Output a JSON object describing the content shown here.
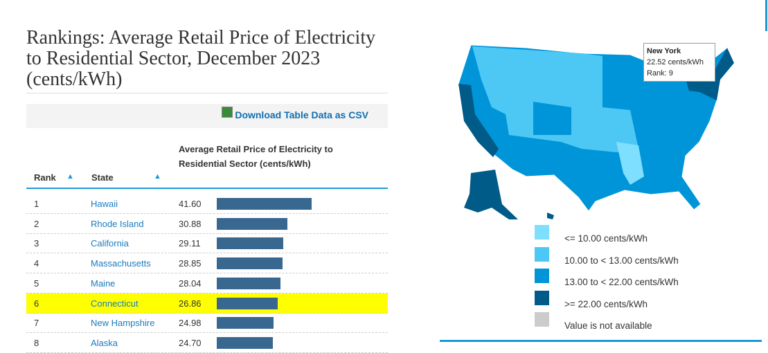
{
  "title": "Rankings: Average Retail Price of Electricity to Residential Sector, December 2023 (cents/kWh)",
  "download_label": "Download Table Data as CSV",
  "table": {
    "headers": {
      "rank": "Rank",
      "state": "State",
      "value": "Average Retail Price of Electricity to Residential Sector (cents/kWh)"
    },
    "rows": [
      {
        "rank": "1",
        "state": "Hawaii",
        "value": 41.6
      },
      {
        "rank": "2",
        "state": "Rhode Island",
        "value": 30.88
      },
      {
        "rank": "3",
        "state": "California",
        "value": 29.11
      },
      {
        "rank": "4",
        "state": "Massachusetts",
        "value": 28.85
      },
      {
        "rank": "5",
        "state": "Maine",
        "value": 28.04
      },
      {
        "rank": "6",
        "state": "Connecticut",
        "value": 26.86,
        "highlighted": true
      },
      {
        "rank": "7",
        "state": "New Hampshire",
        "value": 24.98
      },
      {
        "rank": "8",
        "state": "Alaska",
        "value": 24.7
      }
    ]
  },
  "tooltip": {
    "state": "New York",
    "value": "22.52 cents/kWh",
    "rank": "Rank: 9"
  },
  "legend": [
    {
      "label": "<= 10.00 cents/kWh",
      "color": "#7fdfff"
    },
    {
      "label": "10.00 to < 13.00 cents/kWh",
      "color": "#4dc8f5"
    },
    {
      "label": "13.00 to < 22.00 cents/kWh",
      "color": "#0095d9"
    },
    {
      "label": ">= 22.00 cents/kWh",
      "color": "#005b89"
    },
    {
      "label": "Value is not available",
      "color": "#cccccc"
    }
  ],
  "colors": {
    "bar": "#386890",
    "accent": "#1a9ad6",
    "highlight": "#ffff00"
  }
}
